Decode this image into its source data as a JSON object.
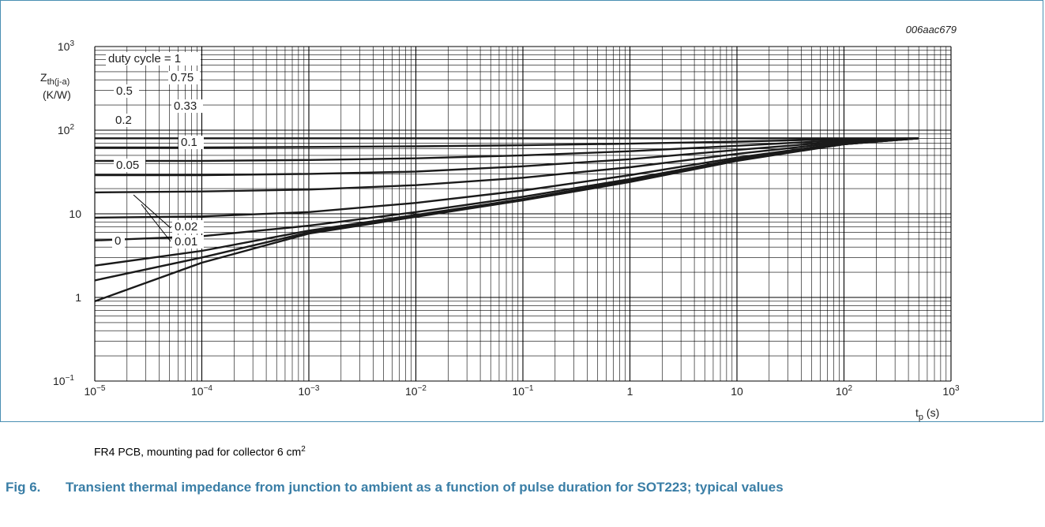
{
  "figure": {
    "id_code": "006aac679",
    "note_text": "FR4 PCB, mounting pad for collector 6 cm",
    "note_sup": "2",
    "caption_number": "Fig 6.",
    "caption_text": "Transient thermal impedance from junction to ambient as a function of pulse duration for SOT223; typical values",
    "frame_color": "#4a8fb3",
    "caption_color": "#3a7ea6"
  },
  "chart_data": {
    "type": "line",
    "xscale": "log",
    "yscale": "log",
    "xlim": [
      1e-05,
      1000
    ],
    "ylim": [
      0.1,
      1000
    ],
    "grid": true,
    "ylabel_main": "Z",
    "ylabel_sub": "th(j-a)",
    "ylabel_unit": "(K/W)",
    "xlabel_main": "t",
    "xlabel_sub": "p",
    "xlabel_unit": " (s)",
    "x_ticks": [
      {
        "value": 1e-05,
        "base": "10",
        "exp": "−5"
      },
      {
        "value": 0.0001,
        "base": "10",
        "exp": "−4"
      },
      {
        "value": 0.001,
        "base": "10",
        "exp": "−3"
      },
      {
        "value": 0.01,
        "base": "10",
        "exp": "−2"
      },
      {
        "value": 0.1,
        "base": "10",
        "exp": "−1"
      },
      {
        "value": 1,
        "base": "1",
        "exp": ""
      },
      {
        "value": 10,
        "base": "10",
        "exp": ""
      },
      {
        "value": 100,
        "base": "10",
        "exp": "2"
      },
      {
        "value": 1000,
        "base": "10",
        "exp": "3"
      }
    ],
    "y_ticks": [
      {
        "value": 0.1,
        "base": "10",
        "exp": "−1"
      },
      {
        "value": 1,
        "base": "1",
        "exp": ""
      },
      {
        "value": 10,
        "base": "10",
        "exp": ""
      },
      {
        "value": 100,
        "base": "10",
        "exp": "2"
      },
      {
        "value": 1000,
        "base": "10",
        "exp": "3"
      }
    ],
    "series": [
      {
        "name": "duty cycle = 1",
        "x": [
          1e-05,
          0.001,
          0.1,
          10,
          100,
          500
        ],
        "y": [
          80,
          80,
          80,
          80,
          80,
          80
        ]
      },
      {
        "name": "0.75",
        "x": [
          1e-05,
          0.0001,
          0.001,
          0.01,
          0.1,
          1,
          10,
          100,
          500
        ],
        "y": [
          62,
          62,
          63,
          64,
          66,
          69,
          73,
          78,
          80
        ]
      },
      {
        "name": "0.5",
        "x": [
          1e-05,
          0.0001,
          0.001,
          0.01,
          0.1,
          1,
          10,
          100,
          500
        ],
        "y": [
          43,
          43,
          44,
          46,
          50,
          56,
          65,
          76,
          80
        ]
      },
      {
        "name": "0.33",
        "x": [
          1e-05,
          0.0001,
          0.001,
          0.01,
          0.1,
          1,
          10,
          100,
          500
        ],
        "y": [
          29,
          29,
          30,
          32,
          37,
          45,
          58,
          74,
          80
        ]
      },
      {
        "name": "0.2",
        "x": [
          1e-05,
          0.0001,
          0.001,
          0.01,
          0.1,
          1,
          10,
          100,
          500
        ],
        "y": [
          18,
          18.5,
          19.5,
          22,
          27,
          36,
          52,
          72,
          80
        ]
      },
      {
        "name": "0.1",
        "x": [
          1e-05,
          0.0001,
          0.001,
          0.01,
          0.1,
          1,
          10,
          100,
          500
        ],
        "y": [
          9,
          9.3,
          10.5,
          13.5,
          19,
          29,
          47,
          70,
          80
        ]
      },
      {
        "name": "0.05",
        "x": [
          1e-05,
          0.0001,
          0.001,
          0.01,
          0.1,
          1,
          10,
          100,
          500
        ],
        "y": [
          4.8,
          5.4,
          7.2,
          10.5,
          16,
          26,
          45,
          69,
          80
        ]
      },
      {
        "name": "0.02",
        "x": [
          1e-05,
          0.0001,
          0.001,
          0.01,
          0.1,
          1,
          10,
          100,
          500
        ],
        "y": [
          2.4,
          3.6,
          6.3,
          9.7,
          15,
          25,
          44,
          68,
          80
        ]
      },
      {
        "name": "0.01",
        "x": [
          1e-05,
          0.0001,
          0.001,
          0.01,
          0.1,
          1,
          10,
          100,
          500
        ],
        "y": [
          1.6,
          3.0,
          6.0,
          9.4,
          14.7,
          24.5,
          44,
          68,
          80
        ]
      },
      {
        "name": "0",
        "x": [
          1e-05,
          0.0001,
          0.001,
          0.01,
          0.1,
          1,
          10,
          100,
          500
        ],
        "y": [
          0.9,
          2.6,
          5.8,
          9.2,
          14.5,
          24,
          43,
          68,
          80
        ]
      }
    ]
  }
}
